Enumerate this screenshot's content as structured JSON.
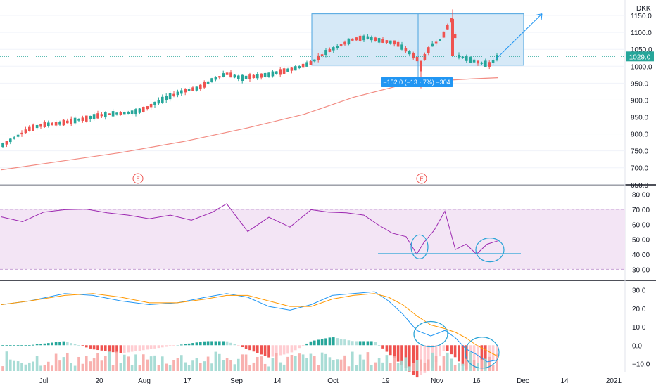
{
  "currency": "DKK",
  "colors": {
    "up": "#26a69a",
    "down": "#ef5350",
    "ma": "#f28b82",
    "rsi": "#9c27b0",
    "rsi_band": "#f3e5f5",
    "macd": "#2196f3",
    "signal": "#ff9800",
    "annotation": "#29a3d6",
    "box": "#cfe5f6",
    "label_bg": "#2196f3"
  },
  "chart_data": [
    {
      "type": "candlestick",
      "panel": "price",
      "ylim": [
        660,
        1175
      ],
      "yticks": [
        "1150.0",
        "1100.0",
        "1050.0",
        "1000.0",
        "950.0",
        "900.0",
        "850.0",
        "800.0",
        "750.0",
        "700.0",
        "650.0"
      ],
      "current_price": 1029.0,
      "current_price_label": "1029.0",
      "moving_average": {
        "points": [
          [
            0,
            694
          ],
          [
            80,
            718
          ],
          [
            170,
            745
          ],
          [
            260,
            778
          ],
          [
            350,
            818
          ],
          [
            430,
            858
          ],
          [
            500,
            908
          ],
          [
            560,
            940
          ],
          [
            620,
            957
          ],
          [
            670,
            963
          ],
          [
            705,
            966
          ]
        ]
      },
      "earnings_markers": [
        "E",
        "E"
      ],
      "measure_label": "−152.0 (−13.·.7%) −304",
      "candles_seed": [
        [
          0,
          765
        ],
        [
          20,
          790
        ],
        [
          40,
          815
        ],
        [
          60,
          828
        ],
        [
          80,
          830
        ],
        [
          100,
          838
        ],
        [
          120,
          845
        ],
        [
          140,
          855
        ],
        [
          160,
          860
        ],
        [
          180,
          862
        ],
        [
          200,
          870
        ],
        [
          220,
          892
        ],
        [
          240,
          912
        ],
        [
          260,
          927
        ],
        [
          280,
          935
        ],
        [
          300,
          960
        ],
        [
          320,
          978
        ],
        [
          340,
          965
        ],
        [
          360,
          970
        ],
        [
          380,
          975
        ],
        [
          400,
          985
        ],
        [
          420,
          995
        ],
        [
          440,
          1010
        ],
        [
          460,
          1040
        ],
        [
          480,
          1060
        ],
        [
          500,
          1080
        ],
        [
          520,
          1085
        ],
        [
          540,
          1075
        ],
        [
          560,
          1070
        ],
        [
          580,
          1040
        ],
        [
          597,
          1010
        ],
        [
          610,
          1060
        ],
        [
          625,
          1080
        ],
        [
          640,
          1140
        ],
        [
          650,
          1030
        ],
        [
          665,
          1020
        ],
        [
          680,
          1010
        ],
        [
          695,
          1005
        ],
        [
          705,
          1029
        ]
      ]
    },
    {
      "type": "line",
      "panel": "rsi",
      "ylim": [
        25,
        85
      ],
      "yticks": [
        "80.00",
        "70.00",
        "60.00",
        "50.00",
        "40.00",
        "30.00"
      ],
      "band": [
        30,
        70
      ],
      "points": [
        [
          0,
          65
        ],
        [
          30,
          60
        ],
        [
          60,
          70
        ],
        [
          90,
          68
        ],
        [
          120,
          72
        ],
        [
          150,
          66
        ],
        [
          180,
          68
        ],
        [
          210,
          62
        ],
        [
          240,
          68
        ],
        [
          270,
          61
        ],
        [
          300,
          70
        ],
        [
          320,
          72
        ],
        [
          350,
          57
        ],
        [
          380,
          63
        ],
        [
          410,
          60
        ],
        [
          440,
          68
        ],
        [
          465,
          70
        ],
        [
          490,
          66
        ],
        [
          515,
          68
        ],
        [
          535,
          58
        ],
        [
          555,
          56
        ],
        [
          575,
          50
        ],
        [
          590,
          42
        ],
        [
          600,
          46
        ],
        [
          615,
          58
        ],
        [
          630,
          67
        ],
        [
          645,
          45
        ],
        [
          660,
          45
        ],
        [
          675,
          42
        ],
        [
          690,
          45
        ],
        [
          705,
          49
        ]
      ]
    },
    {
      "type": "macd",
      "panel": "macd",
      "ylim": [
        -14,
        34
      ],
      "yticks": [
        "30.0",
        "20.0",
        "10.0",
        "0.0",
        "−10.0"
      ],
      "macd_line": [
        [
          0,
          22
        ],
        [
          40,
          24
        ],
        [
          90,
          28
        ],
        [
          130,
          27
        ],
        [
          170,
          24
        ],
        [
          210,
          22
        ],
        [
          250,
          23
        ],
        [
          290,
          26
        ],
        [
          320,
          28
        ],
        [
          350,
          26
        ],
        [
          380,
          21
        ],
        [
          410,
          19
        ],
        [
          440,
          22
        ],
        [
          470,
          27
        ],
        [
          500,
          28
        ],
        [
          530,
          29
        ],
        [
          550,
          24
        ],
        [
          570,
          17
        ],
        [
          590,
          8
        ],
        [
          610,
          5
        ],
        [
          630,
          8
        ],
        [
          645,
          4
        ],
        [
          660,
          -2
        ],
        [
          675,
          -5
        ],
        [
          690,
          -9
        ],
        [
          705,
          -8
        ]
      ],
      "signal_line": [
        [
          0,
          22
        ],
        [
          40,
          24
        ],
        [
          90,
          27
        ],
        [
          130,
          28
        ],
        [
          170,
          26
        ],
        [
          210,
          23
        ],
        [
          250,
          23
        ],
        [
          290,
          25
        ],
        [
          320,
          27
        ],
        [
          350,
          27
        ],
        [
          380,
          24
        ],
        [
          410,
          21
        ],
        [
          440,
          21
        ],
        [
          470,
          25
        ],
        [
          500,
          27
        ],
        [
          530,
          28
        ],
        [
          550,
          26
        ],
        [
          570,
          22
        ],
        [
          590,
          16
        ],
        [
          610,
          11
        ],
        [
          630,
          9
        ],
        [
          645,
          7
        ],
        [
          660,
          4
        ],
        [
          675,
          0
        ],
        [
          690,
          -3
        ],
        [
          705,
          -6
        ]
      ]
    }
  ],
  "xaxis": {
    "labels": [
      "Jul",
      "20",
      "Aug",
      "17",
      "Sep",
      "14",
      "Oct",
      "19",
      "Nov",
      "16",
      "Dec",
      "14",
      "2021"
    ]
  }
}
